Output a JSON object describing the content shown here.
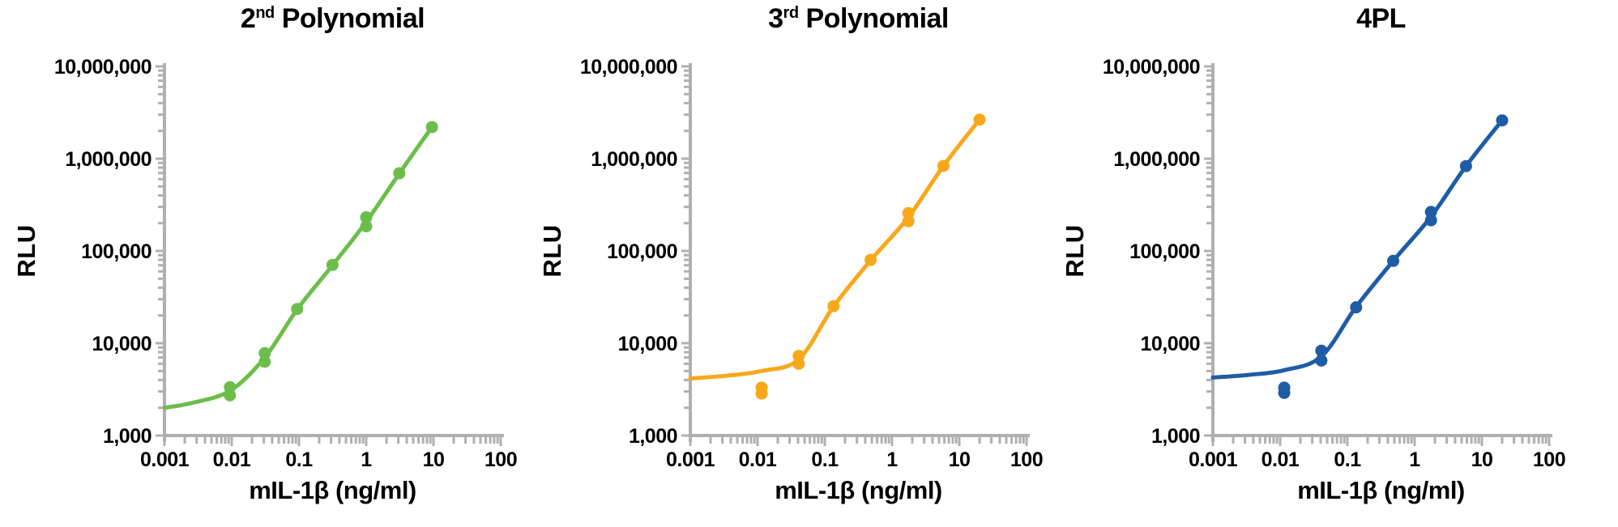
{
  "figure": {
    "background": "#FFFFFF",
    "axis_color": "#B0B0B0",
    "text_color": "#000000"
  },
  "chart_data": [
    {
      "type": "scatter",
      "title_prefix": "2",
      "title_sup": "nd",
      "title_suffix": " Polynomial",
      "color": "#6CBE4B",
      "xlabel": "mIL-1β (ng/ml)",
      "ylabel": "RLU",
      "x_scale": "log",
      "y_scale": "log",
      "xlim": [
        0.001,
        100
      ],
      "ylim": [
        1000,
        10000000
      ],
      "x_tick_labels": [
        "0.001",
        "0.01",
        "0.1",
        "1",
        "10",
        "100"
      ],
      "y_tick_labels": [
        "1,000",
        "10,000",
        "100,000",
        "1,000,000",
        "10,000,000"
      ],
      "points": [
        [
          0.0094,
          2730
        ],
        [
          0.0094,
          3340
        ],
        [
          0.031,
          6300
        ],
        [
          0.031,
          7800
        ],
        [
          0.094,
          23500
        ],
        [
          0.315,
          70500
        ],
        [
          1.0,
          185000
        ],
        [
          1.0,
          232000
        ],
        [
          3.1,
          695000
        ],
        [
          9.5,
          2200000
        ]
      ],
      "curve": [
        [
          0.001,
          2000
        ],
        [
          0.0025,
          2250
        ],
        [
          0.0094,
          3050
        ],
        [
          0.031,
          7000
        ],
        [
          0.094,
          23200
        ],
        [
          0.315,
          70000
        ],
        [
          1.0,
          207000
        ],
        [
          3.1,
          690000
        ],
        [
          9.5,
          2200000
        ]
      ]
    },
    {
      "type": "scatter",
      "title_prefix": "3",
      "title_sup": "rd",
      "title_suffix": " Polynomial",
      "color": "#F8A81B",
      "xlabel": "mIL-1β (ng/ml)",
      "ylabel": "RLU",
      "x_scale": "log",
      "y_scale": "log",
      "xlim": [
        0.001,
        100
      ],
      "ylim": [
        1000,
        10000000
      ],
      "x_tick_labels": [
        "0.001",
        "0.01",
        "0.1",
        "1",
        "10",
        "100"
      ],
      "y_tick_labels": [
        "1,000",
        "10,000",
        "100,000",
        "1,000,000",
        "10,000,000"
      ],
      "points": [
        [
          0.0115,
          2850
        ],
        [
          0.0115,
          3300
        ],
        [
          0.041,
          6000
        ],
        [
          0.041,
          7300
        ],
        [
          0.135,
          25200
        ],
        [
          0.48,
          80000
        ],
        [
          1.75,
          210000
        ],
        [
          1.75,
          257000
        ],
        [
          5.8,
          834000
        ],
        [
          20,
          2650000
        ]
      ],
      "curve": [
        [
          0.001,
          4150
        ],
        [
          0.0035,
          4450
        ],
        [
          0.0115,
          5000
        ],
        [
          0.041,
          6700
        ],
        [
          0.135,
          25000
        ],
        [
          0.48,
          79000
        ],
        [
          1.75,
          232000
        ],
        [
          5.8,
          834000
        ],
        [
          20,
          2650000
        ]
      ]
    },
    {
      "type": "scatter",
      "title_prefix": "4PL",
      "title_sup": "",
      "title_suffix": "",
      "color": "#1E5CA6",
      "xlabel": "mIL-1β (ng/ml)",
      "ylabel": "RLU",
      "x_scale": "log",
      "y_scale": "log",
      "xlim": [
        0.001,
        100
      ],
      "ylim": [
        1000,
        10000000
      ],
      "x_tick_labels": [
        "0.001",
        "0.01",
        "0.1",
        "1",
        "10",
        "100"
      ],
      "y_tick_labels": [
        "1,000",
        "10,000",
        "100,000",
        "1,000,000",
        "10,000,000"
      ],
      "points": [
        [
          0.0115,
          2900
        ],
        [
          0.0115,
          3300
        ],
        [
          0.041,
          6500
        ],
        [
          0.041,
          8300
        ],
        [
          0.135,
          24500
        ],
        [
          0.48,
          78000
        ],
        [
          1.75,
          215000
        ],
        [
          1.75,
          265000
        ],
        [
          5.8,
          830000
        ],
        [
          20,
          2600000
        ]
      ],
      "curve": [
        [
          0.001,
          4250
        ],
        [
          0.0035,
          4550
        ],
        [
          0.0115,
          5100
        ],
        [
          0.041,
          7200
        ],
        [
          0.135,
          24800
        ],
        [
          0.48,
          78000
        ],
        [
          1.75,
          235000
        ],
        [
          5.8,
          830000
        ],
        [
          20,
          2600000
        ]
      ]
    }
  ]
}
